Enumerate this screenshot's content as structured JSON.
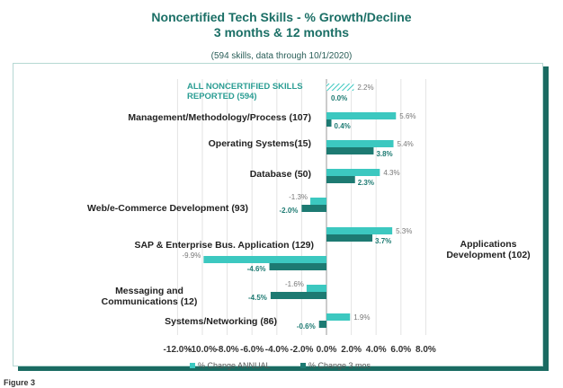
{
  "header": {
    "title_line1": "Noncertified Tech Skills - % Growth/Decline",
    "title_line2": "3 months & 12 months",
    "subtitle": "(594 skills, data through 10/1/2020)"
  },
  "figure_label": "Figure 3",
  "colors": {
    "annual": "#3cc8c0",
    "three_month": "#1d7a72",
    "title": "#1b6f66",
    "frame": "#1a6b62"
  },
  "chart_data": {
    "type": "bar",
    "orientation": "horizontal",
    "title": "Noncertified Tech Skills - % Growth/Decline",
    "subtitle": "3 months & 12 months",
    "categories": [
      "ALL NONCERTIFIED SKILLS REPORTED (594)",
      "Management/Methodology/Process (107)",
      "Operating Systems(15)",
      "Database (50)",
      "Web/e-Commerce Development (93)",
      "Applications Development (102)",
      "SAP & Enterprise Bus. Application (129)",
      "Messaging and Communications (12)",
      "Systems/Networking (86)"
    ],
    "series": [
      {
        "name": "% Change ANNUAL",
        "values": [
          2.2,
          5.6,
          5.4,
          4.3,
          -1.3,
          5.3,
          -9.9,
          -1.6,
          1.9
        ],
        "labels": [
          "2.2%",
          "5.6%",
          "5.4%",
          "4.3%",
          "-1.3%",
          "5.3%",
          "-9.9%",
          "-1.6%",
          "1.9%"
        ]
      },
      {
        "name": "% Change 3 mos",
        "values": [
          0.0,
          0.4,
          3.8,
          2.3,
          -2.0,
          3.7,
          -4.6,
          -4.5,
          -0.6
        ],
        "labels": [
          "0.0%",
          "0.4%",
          "3.8%",
          "2.3%",
          "-2.0%",
          "3.7%",
          "-4.6%",
          "-4.5%",
          "-0.6%"
        ]
      }
    ],
    "xlim": [
      -12.0,
      8.0
    ],
    "xticks": [
      -12.0,
      -10.0,
      -8.0,
      -6.0,
      -4.0,
      -2.0,
      0.0,
      2.0,
      4.0,
      6.0,
      8.0
    ],
    "xtick_labels": [
      "-12.0%",
      "-10.0%",
      "-8.0%",
      "-6.0%",
      "-4.0%",
      "-2.0%",
      "0.0%",
      "2.0%",
      "4.0%",
      "6.0%",
      "8.0%"
    ],
    "grid": true,
    "legend": "bottom"
  }
}
